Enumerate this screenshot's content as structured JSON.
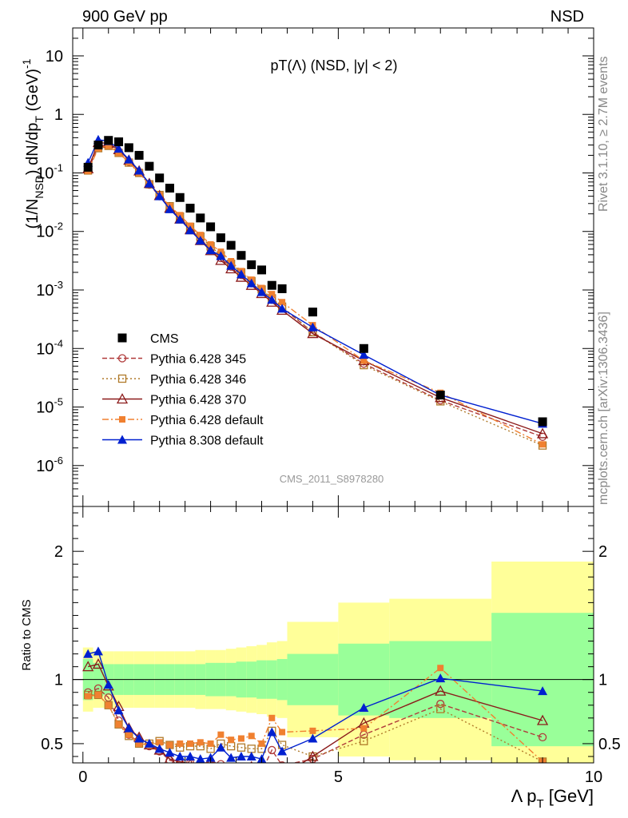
{
  "header": {
    "left": "900 GeV pp",
    "right": "NSD",
    "side_top": "Rivet 3.1.10, ≥ 2.7M events",
    "side_bottom": "mcplots.cern.ch [arXiv:1306.3436]"
  },
  "colors": {
    "cms": "#000000",
    "p345": "#b03a3a",
    "p346": "#b07a2a",
    "p370": "#8b1a1a",
    "p6def": "#f08030",
    "p8def": "#0020d0",
    "band_yellow": "#ffff99",
    "band_green": "#99ff99"
  },
  "chart_data": [
    {
      "type": "scatter",
      "title": "pT(Λ) (NSD, |y| < 2)",
      "watermark": "CMS_2011_S8978280",
      "ylabel": "(1/N_NSD) dN/dp_T (GeV)^-1",
      "yscale": "log",
      "ylim": [
        2e-07,
        30
      ],
      "xlim": [
        -0.2,
        10.0
      ],
      "y_tick_labels": [
        "10^-6",
        "10^-5",
        "10^-4",
        "10^-3",
        "10^-2",
        "10^-1",
        "1",
        "10"
      ],
      "legend_position": "lower-left",
      "series": [
        {
          "key": "cms",
          "name": "CMS",
          "x": [
            0.1,
            0.3,
            0.5,
            0.7,
            0.9,
            1.1,
            1.3,
            1.5,
            1.7,
            1.9,
            2.1,
            2.3,
            2.5,
            2.7,
            2.9,
            3.1,
            3.3,
            3.5,
            3.7,
            3.9,
            4.5,
            5.5,
            7.0,
            9.0
          ],
          "y": [
            0.125,
            0.3,
            0.36,
            0.34,
            0.27,
            0.2,
            0.13,
            0.082,
            0.055,
            0.038,
            0.025,
            0.017,
            0.012,
            0.0078,
            0.0058,
            0.0039,
            0.0027,
            0.0022,
            0.0012,
            0.00105,
            0.00042,
            0.0001,
            1.6e-05,
            5.6e-06
          ]
        },
        {
          "key": "p345",
          "name": "Pythia 6.428 345",
          "x": [
            0.1,
            0.3,
            0.5,
            0.7,
            0.9,
            1.1,
            1.3,
            1.5,
            1.7,
            1.9,
            2.1,
            2.3,
            2.5,
            2.7,
            2.9,
            3.1,
            3.3,
            3.5,
            3.7,
            3.9,
            4.5,
            5.5,
            7.0,
            9.0
          ],
          "y": [
            0.113,
            0.28,
            0.31,
            0.23,
            0.155,
            0.102,
            0.063,
            0.04,
            0.025,
            0.0165,
            0.011,
            0.0073,
            0.005,
            0.0035,
            0.0025,
            0.0018,
            0.0013,
            0.00095,
            0.00068,
            0.0005,
            0.00019,
            5.5e-05,
            1.3e-05,
            3.1e-06
          ]
        },
        {
          "key": "p346",
          "name": "Pythia 6.428 346",
          "x": [
            0.1,
            0.3,
            0.5,
            0.7,
            0.9,
            1.1,
            1.3,
            1.5,
            1.7,
            1.9,
            2.1,
            2.3,
            2.5,
            2.7,
            2.9,
            3.1,
            3.3,
            3.5,
            3.7,
            3.9,
            4.5,
            5.5,
            7.0,
            9.0
          ],
          "y": [
            0.11,
            0.265,
            0.29,
            0.22,
            0.15,
            0.1,
            0.064,
            0.042,
            0.027,
            0.018,
            0.012,
            0.0082,
            0.0056,
            0.0039,
            0.0028,
            0.002,
            0.00142,
            0.00102,
            0.00072,
            0.00052,
            0.00019,
            5.2e-05,
            1.25e-05,
            2.2e-06
          ]
        },
        {
          "key": "p370",
          "name": "Pythia 6.428 370",
          "x": [
            0.1,
            0.3,
            0.5,
            0.7,
            0.9,
            1.1,
            1.3,
            1.5,
            1.7,
            1.9,
            2.1,
            2.3,
            2.5,
            2.7,
            2.9,
            3.1,
            3.3,
            3.5,
            3.7,
            3.9,
            4.5,
            5.5,
            7.0,
            9.0
          ],
          "y": [
            0.118,
            0.33,
            0.32,
            0.25,
            0.165,
            0.108,
            0.066,
            0.041,
            0.025,
            0.0163,
            0.0107,
            0.007,
            0.0047,
            0.0032,
            0.0023,
            0.00165,
            0.0012,
            0.00087,
            0.00062,
            0.00045,
            0.00018,
            6.2e-05,
            1.45e-05,
            3.5e-06
          ]
        },
        {
          "key": "p6def",
          "name": "Pythia 6.428 default",
          "x": [
            0.1,
            0.3,
            0.5,
            0.7,
            0.9,
            1.1,
            1.3,
            1.5,
            1.7,
            1.9,
            2.1,
            2.3,
            2.5,
            2.7,
            2.9,
            3.1,
            3.3,
            3.5,
            3.7,
            3.9,
            4.5,
            5.5,
            7.0,
            9.0
          ],
          "y": [
            0.108,
            0.265,
            0.29,
            0.22,
            0.153,
            0.1,
            0.064,
            0.042,
            0.027,
            0.019,
            0.0125,
            0.0087,
            0.006,
            0.0045,
            0.0031,
            0.0021,
            0.0015,
            0.00108,
            0.00085,
            0.00062,
            0.00025,
            6.2e-05,
            1.75e-05,
            2.3e-06
          ]
        },
        {
          "key": "p8def",
          "name": "Pythia 8.308 default",
          "x": [
            0.1,
            0.3,
            0.5,
            0.7,
            0.9,
            1.1,
            1.3,
            1.5,
            1.7,
            1.9,
            2.1,
            2.3,
            2.5,
            2.7,
            2.9,
            3.1,
            3.3,
            3.5,
            3.7,
            3.9,
            4.5,
            5.5,
            7.0,
            9.0
          ],
          "y": [
            0.15,
            0.37,
            0.35,
            0.26,
            0.17,
            0.11,
            0.066,
            0.04,
            0.024,
            0.016,
            0.0105,
            0.007,
            0.0048,
            0.0038,
            0.0026,
            0.00185,
            0.0013,
            0.00092,
            0.00068,
            0.00048,
            0.00023,
            7.8e-05,
            1.6e-05,
            5.2e-06
          ]
        }
      ]
    },
    {
      "type": "line",
      "ylabel": "Ratio to CMS",
      "xlabel": "Λ p_T [GeV]",
      "xlim": [
        -0.2,
        10.0
      ],
      "ylim": [
        0.35,
        2.35
      ],
      "x_ticks": [
        0,
        5,
        10
      ],
      "y_ticks": [
        0.5,
        1,
        2
      ],
      "reference_line": 1,
      "bands": {
        "edges": [
          0,
          0.2,
          0.4,
          0.6,
          0.8,
          1.0,
          1.2,
          1.4,
          1.6,
          1.8,
          2.0,
          2.2,
          2.4,
          2.6,
          2.8,
          3.0,
          3.2,
          3.4,
          3.6,
          3.8,
          4.0,
          5.0,
          6.0,
          8.0,
          10.0
        ],
        "green_rel": [
          0.16,
          0.13,
          0.12,
          0.12,
          0.12,
          0.12,
          0.12,
          0.12,
          0.12,
          0.12,
          0.12,
          0.12,
          0.13,
          0.13,
          0.13,
          0.14,
          0.14,
          0.15,
          0.15,
          0.16,
          0.2,
          0.28,
          0.3,
          0.52
        ],
        "yellow_rel": [
          0.25,
          0.22,
          0.22,
          0.22,
          0.22,
          0.22,
          0.22,
          0.22,
          0.22,
          0.22,
          0.22,
          0.23,
          0.23,
          0.23,
          0.24,
          0.25,
          0.26,
          0.27,
          0.29,
          0.3,
          0.45,
          0.6,
          0.63,
          0.92
        ]
      },
      "series": [
        {
          "key": "p345",
          "x": [
            0.1,
            0.3,
            0.5,
            0.7,
            0.9,
            1.1,
            1.3,
            1.5,
            1.7,
            1.9,
            2.1,
            2.3,
            2.5,
            2.7,
            2.9,
            3.1,
            3.3,
            3.5,
            3.7,
            3.9,
            4.5,
            5.5,
            7.0,
            9.0
          ],
          "y": [
            0.9,
            0.93,
            0.86,
            0.68,
            0.57,
            0.51,
            0.48,
            0.44,
            0.37,
            0.35,
            0.35,
            0.34,
            0.36,
            0.34,
            0.3,
            0.3,
            0.3,
            0.28,
            0.45,
            0.33,
            0.38,
            0.57,
            0.81,
            0.55
          ]
        },
        {
          "key": "p346",
          "x": [
            0.1,
            0.3,
            0.5,
            0.7,
            0.9,
            1.1,
            1.3,
            1.5,
            1.7,
            1.9,
            2.1,
            2.3,
            2.5,
            2.7,
            2.9,
            3.1,
            3.3,
            3.5,
            3.7,
            3.9,
            4.5,
            5.5,
            7.0,
            9.0
          ],
          "y": [
            0.88,
            0.88,
            0.8,
            0.65,
            0.56,
            0.5,
            0.5,
            0.52,
            0.49,
            0.47,
            0.48,
            0.48,
            0.46,
            0.5,
            0.48,
            0.47,
            0.46,
            0.46,
            0.6,
            0.49,
            0.4,
            0.52,
            0.77,
            0.36
          ]
        },
        {
          "key": "p370",
          "x": [
            0.1,
            0.3,
            0.5,
            0.7,
            0.9,
            1.1,
            1.3,
            1.5,
            1.7,
            1.9,
            2.1,
            2.3,
            2.5,
            2.7,
            2.9,
            3.1,
            3.3,
            3.5,
            3.7,
            3.9,
            4.5,
            5.5,
            7.0,
            9.0
          ],
          "y": [
            1.1,
            1.12,
            0.95,
            0.79,
            0.62,
            0.55,
            0.49,
            0.45,
            0.38,
            0.36,
            0.34,
            0.32,
            0.32,
            0.3,
            0.3,
            0.3,
            0.32,
            0.3,
            0.26,
            0.25,
            0.4,
            0.66,
            0.91,
            0.68
          ]
        },
        {
          "key": "p6def",
          "x": [
            0.1,
            0.3,
            0.5,
            0.7,
            0.9,
            1.1,
            1.3,
            1.5,
            1.7,
            1.9,
            2.1,
            2.3,
            2.5,
            2.7,
            2.9,
            3.1,
            3.3,
            3.5,
            3.7,
            3.9,
            4.5,
            5.5,
            7.0,
            9.0
          ],
          "y": [
            0.87,
            0.88,
            0.8,
            0.65,
            0.57,
            0.5,
            0.49,
            0.51,
            0.49,
            0.5,
            0.5,
            0.51,
            0.5,
            0.57,
            0.53,
            0.54,
            0.56,
            0.5,
            0.7,
            0.59,
            0.6,
            0.62,
            1.09,
            0.36
          ]
        },
        {
          "key": "p8def",
          "x": [
            0.1,
            0.3,
            0.5,
            0.7,
            0.9,
            1.1,
            1.3,
            1.5,
            1.7,
            1.9,
            2.1,
            2.3,
            2.5,
            2.7,
            2.9,
            3.1,
            3.3,
            3.5,
            3.7,
            3.9,
            4.5,
            5.5,
            7.0,
            9.0
          ],
          "y": [
            1.2,
            1.22,
            0.96,
            0.76,
            0.62,
            0.54,
            0.5,
            0.46,
            0.43,
            0.4,
            0.4,
            0.38,
            0.39,
            0.47,
            0.39,
            0.4,
            0.4,
            0.38,
            0.59,
            0.44,
            0.54,
            0.78,
            1.01,
            0.91
          ]
        }
      ]
    }
  ]
}
